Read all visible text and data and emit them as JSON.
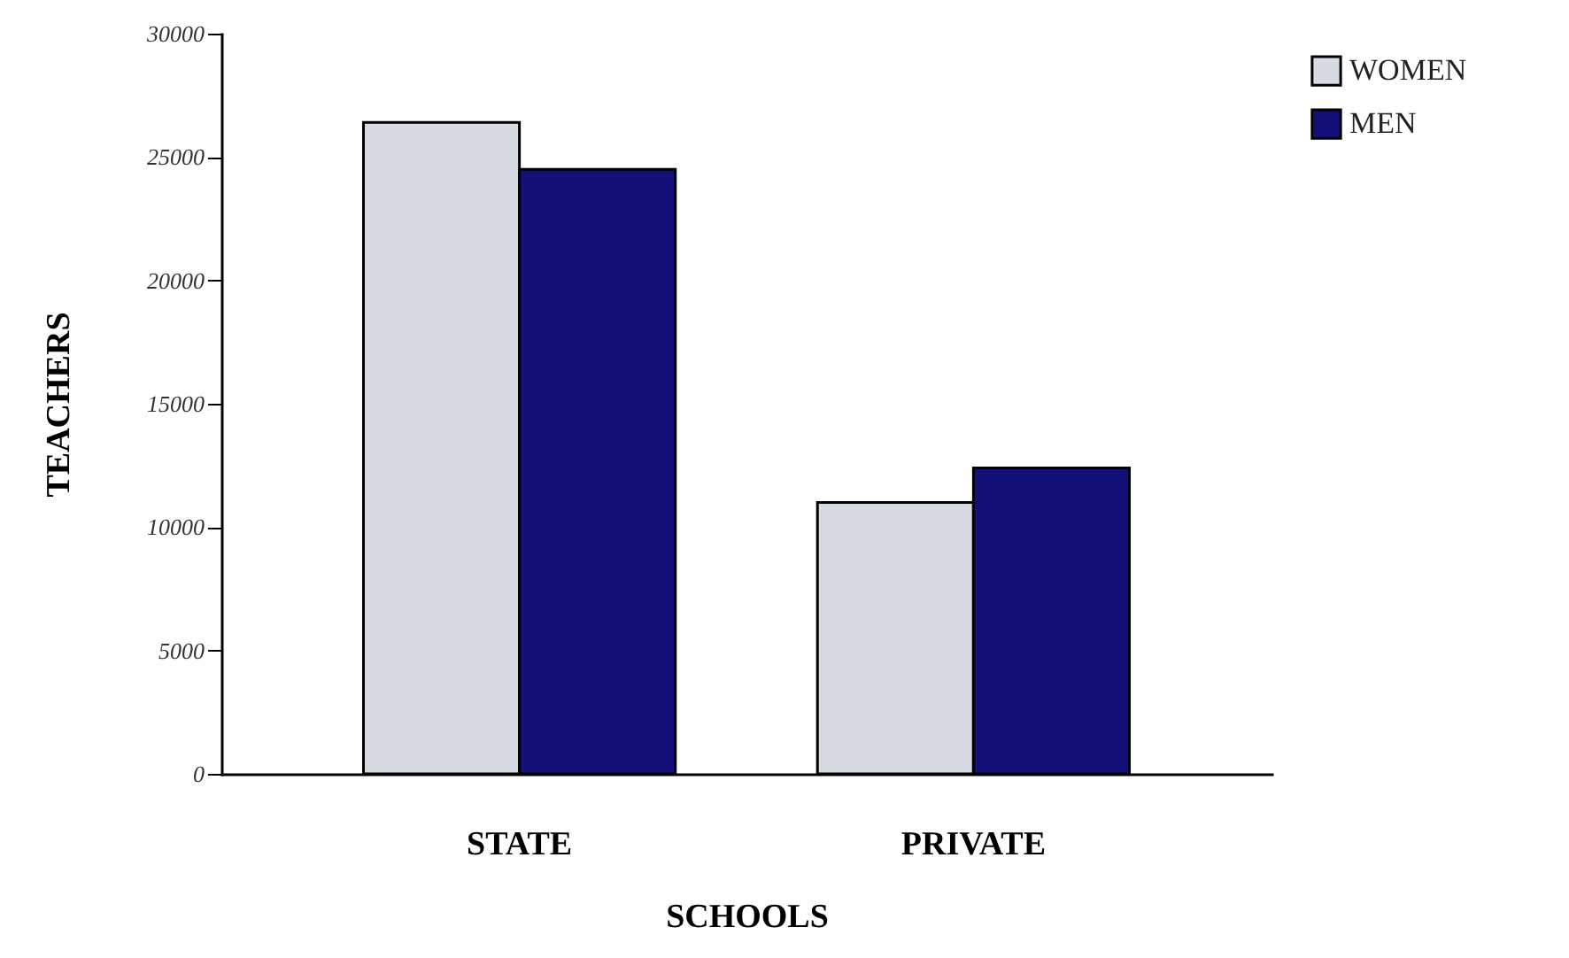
{
  "chart_data": {
    "type": "bar",
    "xlabel": "SCHOOLS",
    "ylabel": "TEACHERS",
    "categories": [
      "STATE",
      "PRIVATE"
    ],
    "series": [
      {
        "name": "WOMEN",
        "color": "#d5dae3",
        "values": [
          26400,
          11000
        ]
      },
      {
        "name": "MEN",
        "color": "#14107a",
        "values": [
          24500,
          12400
        ]
      }
    ],
    "ylim": [
      0,
      30000
    ],
    "yticks": [
      0,
      5000,
      10000,
      15000,
      20000,
      25000,
      30000
    ],
    "grid": false,
    "legend": "top right"
  }
}
